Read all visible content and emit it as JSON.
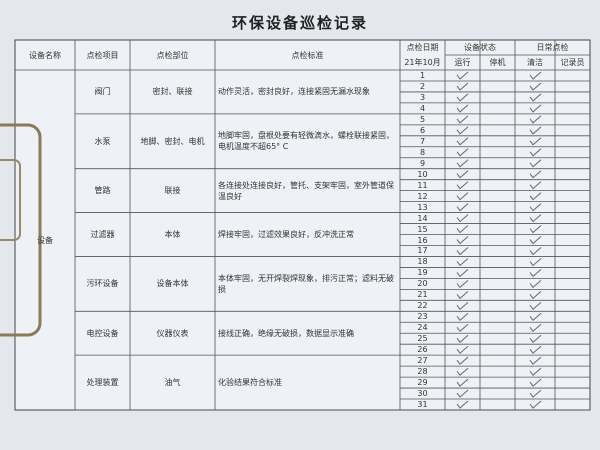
{
  "title": "环保设备巡检记录",
  "headers": {
    "name": "设备名称",
    "item": "点检项目",
    "part": "点检部位",
    "standard": "点检标准",
    "date": "点检日期",
    "status": "设备状态",
    "running": "运行",
    "stopped": "停机",
    "daily": "日常点检",
    "clean": "清洁",
    "recorder": "记录员"
  },
  "date_label": "21年10月",
  "equipment": "设备",
  "rows": [
    {
      "item": "阀门",
      "part": "密封、联接",
      "standard": "动作灵活，密封良好，连接紧固无漏水现象",
      "days": [
        1,
        2,
        3,
        4
      ]
    },
    {
      "item": "水泵",
      "part": "地脚、密封、电机",
      "standard": "地脚牢固，盘根处要有轻微滴水，螺栓联接紧固，电机温度不超65° C",
      "days": [
        5,
        6,
        7,
        8,
        9
      ]
    },
    {
      "item": "管路",
      "part": "联接",
      "standard": "各连接处连接良好，管托、支架牢固，室外管道保温良好",
      "days": [
        10,
        11,
        12,
        13
      ]
    },
    {
      "item": "过滤器",
      "part": "本体",
      "standard": "焊接牢固，过滤效果良好，反冲洗正常",
      "days": [
        14,
        15,
        16,
        17
      ]
    },
    {
      "item": "污环设备",
      "part": "设备本体",
      "standard": "本体牢固，无开焊裂焊现象，排污正常；滤料无破损",
      "days": [
        18,
        19,
        20,
        21,
        22
      ]
    },
    {
      "item": "电控设备",
      "part": "仪器仪表",
      "standard": "接线正确，绝缘无破损，数据显示准确",
      "days": [
        23,
        24,
        25,
        26
      ]
    },
    {
      "item": "处理装置",
      "part": "油气",
      "standard": "化验结果符合标准",
      "days": [
        27,
        28,
        29,
        30,
        31
      ]
    }
  ]
}
